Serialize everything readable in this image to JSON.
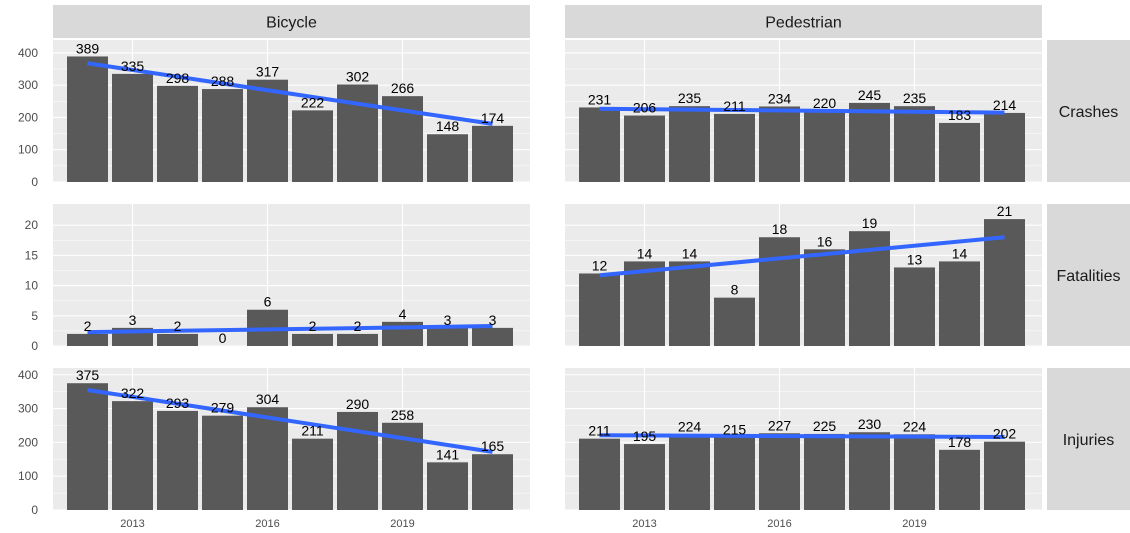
{
  "chart_data": {
    "type": "bar",
    "facet_columns": [
      "Bicycle",
      "Pedestrian"
    ],
    "facet_rows": [
      "Crashes",
      "Fatalities",
      "Injuries"
    ],
    "x": [
      2012,
      2013,
      2014,
      2015,
      2016,
      2017,
      2018,
      2019,
      2020,
      2021
    ],
    "x_ticks": [
      2013,
      2016,
      2019
    ],
    "x_tick_labels": [
      "2013",
      "2016",
      "2019"
    ],
    "y_axes": {
      "Crashes": {
        "ylim": [
          0,
          440
        ],
        "ticks": [
          0,
          100,
          200,
          300,
          400
        ]
      },
      "Fatalities": {
        "ylim": [
          0,
          23.5
        ],
        "ticks": [
          0,
          5,
          10,
          15,
          20
        ]
      },
      "Injuries": {
        "ylim": [
          0,
          420
        ],
        "ticks": [
          0,
          100,
          200,
          300,
          400
        ]
      }
    },
    "panels": [
      {
        "column": "Bicycle",
        "row": "Crashes",
        "values": [
          389,
          335,
          298,
          288,
          317,
          222,
          302,
          266,
          148,
          174
        ],
        "trend": [
          368,
          180
        ]
      },
      {
        "column": "Pedestrian",
        "row": "Crashes",
        "values": [
          231,
          206,
          235,
          211,
          234,
          220,
          245,
          235,
          183,
          214
        ],
        "trend": [
          227,
          215
        ]
      },
      {
        "column": "Bicycle",
        "row": "Fatalities",
        "values": [
          2,
          3,
          2,
          0,
          6,
          2,
          2,
          4,
          3,
          3
        ],
        "trend": [
          2.3,
          3.3
        ]
      },
      {
        "column": "Pedestrian",
        "row": "Fatalities",
        "values": [
          12,
          14,
          14,
          8,
          18,
          16,
          19,
          13,
          14,
          21
        ],
        "trend": [
          11.7,
          18.0
        ]
      },
      {
        "column": "Bicycle",
        "row": "Injuries",
        "values": [
          375,
          322,
          293,
          279,
          304,
          211,
          290,
          258,
          141,
          165
        ],
        "trend": [
          355,
          172
        ]
      },
      {
        "column": "Pedestrian",
        "row": "Injuries",
        "values": [
          211,
          195,
          224,
          215,
          227,
          225,
          230,
          224,
          178,
          202
        ],
        "trend": [
          221,
          216
        ]
      }
    ],
    "colors": {
      "bar": "#595959",
      "trend_line": "#3366ff",
      "panel_background": "#ebebeb",
      "strip_background": "#d9d9d9",
      "grid": "#ffffff"
    },
    "grid": true,
    "legend": "none"
  }
}
